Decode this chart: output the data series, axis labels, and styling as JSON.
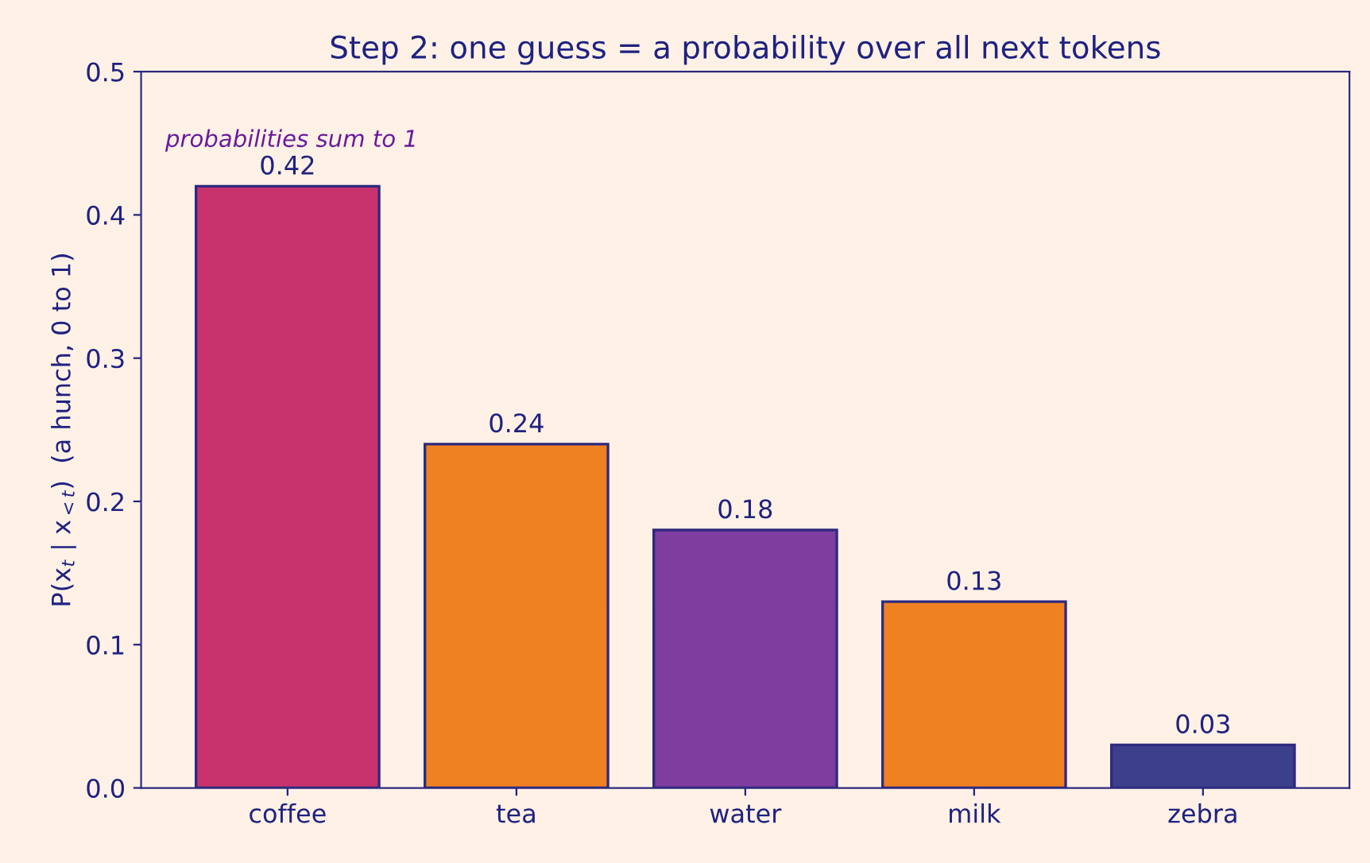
{
  "chart_data": {
    "type": "bar",
    "title": "Step 2: one guess = a probability over all next tokens",
    "ylabel": "P(x$_{t}$ | x$_{<t}$)  (a hunch, 0 to 1)",
    "categories": [
      "coffee",
      "tea",
      "water",
      "milk",
      "zebra"
    ],
    "values": [
      0.42,
      0.24,
      0.18,
      0.13,
      0.03
    ],
    "colors": [
      "#c8336e",
      "#f08122",
      "#7f3da0",
      "#f08122",
      "#3c3f8c"
    ],
    "ylim": [
      0,
      0.5
    ],
    "yticks": [
      {
        "value": 0,
        "label": "0.0"
      },
      0.1,
      0.2,
      0.3,
      0.4,
      0.5
    ],
    "data_labels": true,
    "grid": false,
    "legend": false,
    "annotations": [
      "probabilities sum to 1"
    ]
  }
}
